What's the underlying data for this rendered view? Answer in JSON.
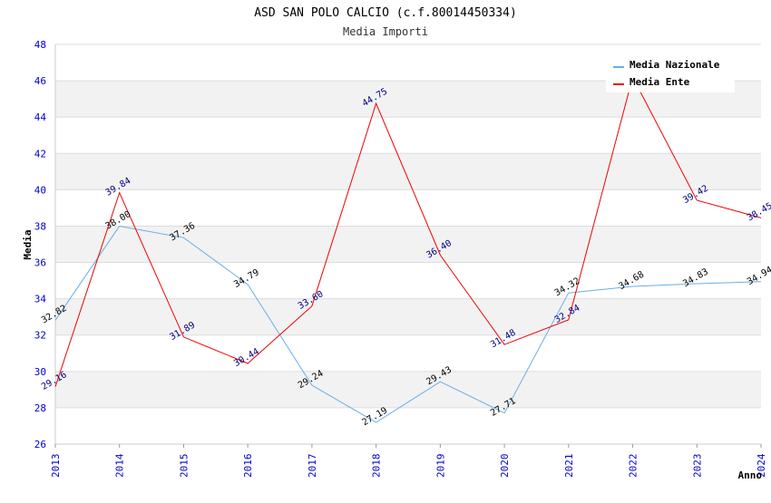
{
  "chart_data": {
    "type": "line",
    "title": "ASD SAN POLO CALCIO (c.f.80014450334)",
    "subtitle": "Media Importi",
    "xlabel": "Anno",
    "ylabel": "Media",
    "categories": [
      "2013",
      "2014",
      "2015",
      "2016",
      "2017",
      "2018",
      "2019",
      "2020",
      "2021",
      "2022",
      "2023",
      "2024"
    ],
    "ylim": [
      26,
      48
    ],
    "yticks": [
      26,
      28,
      30,
      32,
      34,
      36,
      38,
      40,
      42,
      44,
      46,
      48
    ],
    "grid": true,
    "legend_position": "top-right",
    "series": [
      {
        "name": "Media Nazionale",
        "color": "#6aaee8",
        "values": [
          32.82,
          38.0,
          37.36,
          34.79,
          29.24,
          27.19,
          29.43,
          27.71,
          34.32,
          34.68,
          34.83,
          34.94
        ],
        "labels": [
          "32.82",
          "38.00",
          "37.36",
          "34.79",
          "29.24",
          "27.19",
          "29.43",
          "27.71",
          "34.32",
          "34.68",
          "34.83",
          "34.94"
        ]
      },
      {
        "name": "Media Ente",
        "color": "#ee0000",
        "values": [
          29.16,
          39.84,
          31.89,
          30.44,
          33.6,
          44.75,
          36.4,
          31.48,
          32.84,
          46.2,
          39.42,
          38.45
        ],
        "labels": [
          "29.16",
          "39.84",
          "31.89",
          "30.44",
          "33.60",
          "44.75",
          "36.40",
          "31.48",
          "32.84",
          "",
          "39.42",
          "38.45"
        ]
      }
    ]
  }
}
